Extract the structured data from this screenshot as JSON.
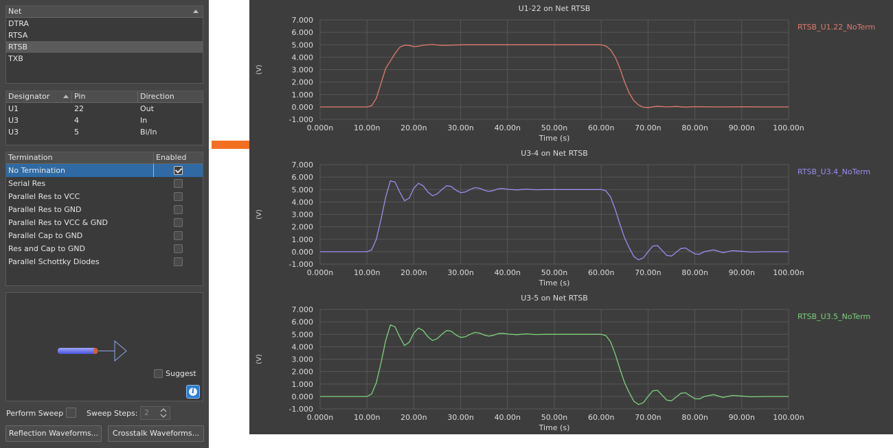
{
  "net_list": {
    "header": "Net",
    "items": [
      "DTRA",
      "RTSA",
      "RTSB",
      "TXB"
    ],
    "selected": 2
  },
  "pin_table": {
    "headers": [
      "Designator",
      "Pin",
      "Direction"
    ],
    "rows": [
      {
        "designator": "U1",
        "pin": "22",
        "direction": "Out"
      },
      {
        "designator": "U3",
        "pin": "4",
        "direction": "In"
      },
      {
        "designator": "U3",
        "pin": "5",
        "direction": "Bi/In"
      }
    ]
  },
  "termination": {
    "headers": [
      "Termination",
      "Enabled"
    ],
    "items": [
      {
        "label": "No Termination",
        "enabled": true
      },
      {
        "label": "Serial Res",
        "enabled": false
      },
      {
        "label": "Parallel Res to VCC",
        "enabled": false
      },
      {
        "label": "Parallel Res to GND",
        "enabled": false
      },
      {
        "label": "Parallel Res to VCC & GND",
        "enabled": false
      },
      {
        "label": "Parallel Cap to GND",
        "enabled": false
      },
      {
        "label": "Res and Cap to GND",
        "enabled": false
      },
      {
        "label": "Parallel Schottky Diodes",
        "enabled": false
      }
    ],
    "selected": 0
  },
  "preview": {
    "suggest_label": "Suggest",
    "info_glyph": "i"
  },
  "sweep": {
    "perform_label": "Perform Sweep",
    "steps_label": "Sweep Steps:",
    "steps_value": "2"
  },
  "buttons": {
    "reflection": "Reflection Waveforms...",
    "crosstalk": "Crosstalk Waveforms..."
  },
  "colors": {
    "arrow": "#f26f21",
    "selected_row": "#2f6aa4"
  },
  "chart_data": [
    {
      "type": "line",
      "title": "U1-22 on Net RTSB",
      "xlabel": "Time (s)",
      "ylabel": "(V)",
      "x_ticks": [
        "0.000n",
        "10.00n",
        "20.00n",
        "30.00n",
        "40.00n",
        "50.00n",
        "60.00n",
        "70.00n",
        "80.00n",
        "90.00n",
        "100.00n"
      ],
      "y_ticks": [
        "7.000",
        "6.000",
        "5.000",
        "4.000",
        "3.000",
        "2.000",
        "1.000",
        "0.000",
        "-1.000"
      ],
      "xlim": [
        0,
        100
      ],
      "ylim": [
        -1,
        7
      ],
      "grid": true,
      "legend": "top-right",
      "series": [
        {
          "name": "RTSB_U1.22_NoTerm",
          "color": "#e07a6e",
          "x": [
            0,
            10,
            11,
            12,
            13,
            14,
            15,
            16,
            17,
            18,
            19,
            20,
            21,
            22,
            24,
            26,
            28,
            30,
            35,
            40,
            45,
            50,
            55,
            60,
            61,
            62,
            63,
            64,
            65,
            66,
            67,
            68,
            69,
            70,
            72,
            74,
            76,
            78,
            80,
            85,
            90,
            95,
            100
          ],
          "y": [
            0,
            0,
            0.1,
            0.7,
            1.9,
            3.1,
            3.7,
            4.3,
            4.8,
            4.97,
            4.95,
            4.85,
            4.88,
            4.97,
            5.02,
            4.95,
            4.97,
            5.0,
            5.0,
            5.0,
            5.0,
            5.0,
            5.0,
            5.0,
            4.9,
            4.6,
            4.0,
            3.1,
            2.0,
            1.1,
            0.5,
            0.15,
            -0.03,
            -0.05,
            0.06,
            0.0,
            0.04,
            -0.02,
            0.02,
            0.0,
            0.01,
            0.0,
            0.0
          ]
        }
      ]
    },
    {
      "type": "line",
      "title": "U3-4 on Net RTSB",
      "xlabel": "Time (s)",
      "ylabel": "(V)",
      "x_ticks": [
        "0.000n",
        "10.00n",
        "20.00n",
        "30.00n",
        "40.00n",
        "50.00n",
        "60.00n",
        "70.00n",
        "80.00n",
        "90.00n",
        "100.00n"
      ],
      "y_ticks": [
        "7.000",
        "6.000",
        "5.000",
        "4.000",
        "3.000",
        "2.000",
        "1.000",
        "0.000",
        "-1.000"
      ],
      "xlim": [
        0,
        100
      ],
      "ylim": [
        -1,
        7
      ],
      "grid": true,
      "legend": "top-right",
      "series": [
        {
          "name": "RTSB_U3.4_NoTerm",
          "color": "#9a8ef0",
          "x": [
            0,
            10,
            11,
            12,
            13,
            14,
            15,
            16,
            17,
            18,
            19,
            20,
            21,
            22,
            23,
            24,
            25,
            26,
            27,
            28,
            29,
            30,
            31,
            32,
            33,
            34,
            35,
            36,
            37,
            38,
            39,
            40,
            42,
            44,
            46,
            48,
            50,
            55,
            60,
            61,
            62,
            63,
            64,
            65,
            66,
            67,
            68,
            69,
            70,
            71,
            72,
            73,
            74,
            75,
            76,
            77,
            78,
            79,
            80,
            81,
            82,
            84,
            86,
            88,
            90,
            92,
            95,
            100
          ],
          "y": [
            0,
            0,
            0.15,
            1.0,
            2.6,
            4.4,
            5.7,
            5.6,
            4.8,
            4.1,
            4.3,
            5.1,
            5.5,
            5.3,
            4.8,
            4.5,
            4.65,
            5.0,
            5.3,
            5.25,
            4.95,
            4.75,
            4.8,
            5.0,
            5.15,
            5.1,
            4.95,
            4.85,
            4.92,
            5.05,
            5.08,
            5.02,
            4.97,
            5.03,
            4.98,
            5.0,
            5.0,
            5.0,
            5.0,
            4.9,
            4.4,
            3.4,
            2.2,
            1.1,
            0.3,
            -0.4,
            -0.65,
            -0.5,
            0.0,
            0.45,
            0.5,
            0.1,
            -0.3,
            -0.35,
            -0.05,
            0.25,
            0.3,
            0.05,
            -0.18,
            -0.2,
            0.0,
            0.15,
            -0.08,
            0.08,
            0.03,
            -0.03,
            0.0,
            0.0
          ]
        }
      ]
    },
    {
      "type": "line",
      "title": "U3-5 on Net RTSB",
      "xlabel": "Time (s)",
      "ylabel": "(V)",
      "x_ticks": [
        "0.000n",
        "10.00n",
        "20.00n",
        "30.00n",
        "40.00n",
        "50.00n",
        "60.00n",
        "70.00n",
        "80.00n",
        "90.00n",
        "100.00n"
      ],
      "y_ticks": [
        "7.000",
        "6.000",
        "5.000",
        "4.000",
        "3.000",
        "2.000",
        "1.000",
        "0.000",
        "-1.000"
      ],
      "xlim": [
        0,
        100
      ],
      "ylim": [
        -1,
        7
      ],
      "grid": true,
      "legend": "top-right",
      "series": [
        {
          "name": "RTSB_U3.5_NoTerm",
          "color": "#7ed27e",
          "x": [
            0,
            10,
            11,
            12,
            13,
            14,
            15,
            16,
            17,
            18,
            19,
            20,
            21,
            22,
            23,
            24,
            25,
            26,
            27,
            28,
            29,
            30,
            31,
            32,
            33,
            34,
            35,
            36,
            37,
            38,
            39,
            40,
            42,
            44,
            46,
            48,
            50,
            55,
            60,
            61,
            62,
            63,
            64,
            65,
            66,
            67,
            68,
            69,
            70,
            71,
            72,
            73,
            74,
            75,
            76,
            77,
            78,
            79,
            80,
            81,
            82,
            84,
            86,
            88,
            90,
            92,
            95,
            100
          ],
          "y": [
            0,
            0,
            0.2,
            1.1,
            2.7,
            4.5,
            5.75,
            5.6,
            4.8,
            4.1,
            4.35,
            5.1,
            5.5,
            5.3,
            4.8,
            4.5,
            4.65,
            5.0,
            5.3,
            5.25,
            4.95,
            4.75,
            4.8,
            5.0,
            5.15,
            5.1,
            4.95,
            4.85,
            4.92,
            5.05,
            5.08,
            5.02,
            4.97,
            5.03,
            4.98,
            5.0,
            5.0,
            5.0,
            5.0,
            4.9,
            4.4,
            3.4,
            2.2,
            1.1,
            0.3,
            -0.4,
            -0.65,
            -0.5,
            0.0,
            0.45,
            0.5,
            0.1,
            -0.3,
            -0.35,
            -0.05,
            0.25,
            0.3,
            0.05,
            -0.18,
            -0.2,
            0.0,
            0.15,
            -0.08,
            0.08,
            0.03,
            -0.03,
            0.0,
            0.0
          ]
        }
      ]
    }
  ]
}
